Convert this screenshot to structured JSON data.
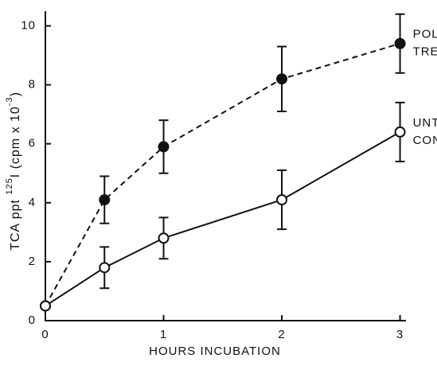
{
  "chart_data": {
    "type": "line",
    "xlabel": "HOURS INCUBATION",
    "ylabel_parts": [
      "TCA ppt ",
      "125",
      "I (cpm x 10",
      "-3",
      ")"
    ],
    "x": [
      0,
      0.5,
      1,
      2,
      3
    ],
    "xlim": [
      0,
      3.05
    ],
    "xticks": [
      0,
      1,
      2,
      3
    ],
    "ylim": [
      0,
      10.5
    ],
    "yticks": [
      0,
      2,
      4,
      6,
      8,
      10
    ],
    "series": [
      {
        "label": [
          "POLY A:U",
          "TREATED"
        ],
        "color": "#111",
        "dashed": true,
        "filled": true,
        "values": [
          0.5,
          4.1,
          5.9,
          8.2,
          9.4
        ],
        "errors": [
          null,
          0.8,
          0.9,
          1.1,
          1.0
        ]
      },
      {
        "label": [
          "UNTREATED",
          "CONTROL"
        ],
        "color": "#111",
        "dashed": false,
        "filled": false,
        "values": [
          0.5,
          1.8,
          2.8,
          4.1,
          6.4
        ],
        "errors": [
          null,
          0.7,
          0.7,
          1.0,
          1.0
        ]
      }
    ]
  }
}
